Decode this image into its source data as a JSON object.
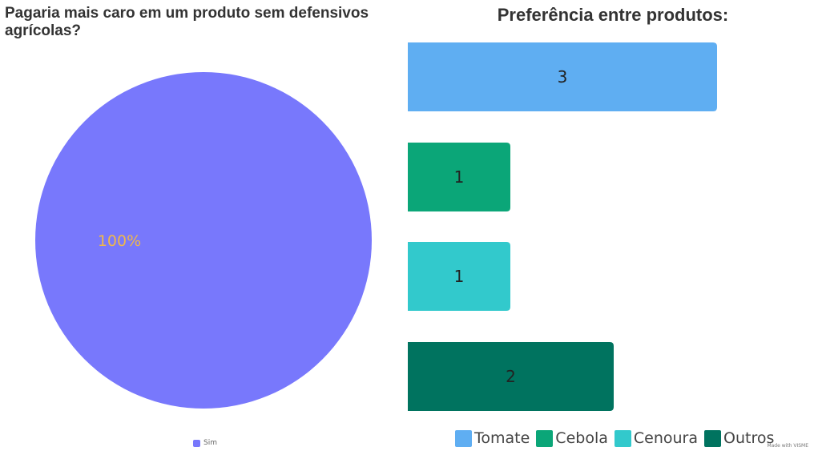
{
  "chart_data": [
    {
      "type": "pie",
      "title": "Pagaria mais caro em um produto sem defensivos agrícolas?",
      "slices": [
        {
          "label": "Sim",
          "value": 100,
          "display": "100%",
          "color": "#7878fc"
        }
      ],
      "label_color": "#f0b84a",
      "legend_position": "bottom-center"
    },
    {
      "type": "bar",
      "orientation": "horizontal",
      "title": "Preferência entre produtos:",
      "categories": [
        "Tomate",
        "Cebola",
        "Cenoura",
        "Outros"
      ],
      "values": [
        3,
        1,
        1,
        2
      ],
      "colors": [
        "#5faef2",
        "#0ba678",
        "#32c9cc",
        "#00735f"
      ],
      "xlim": [
        0,
        3
      ],
      "grid": false,
      "legend_position": "bottom-right"
    }
  ],
  "watermark": "Made with VISME"
}
